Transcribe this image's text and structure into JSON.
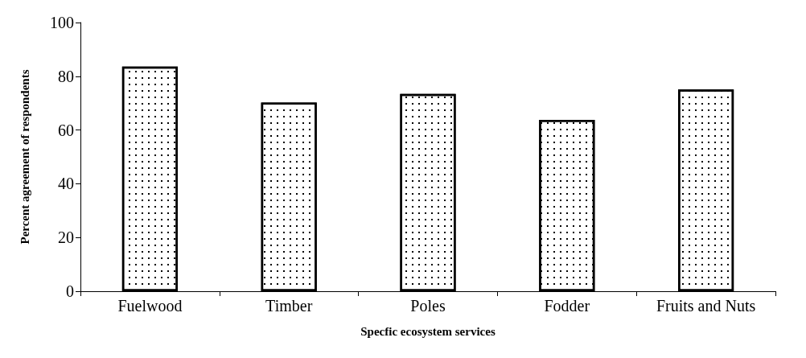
{
  "chart_data": {
    "type": "bar",
    "xlabel": "Specfic ecosystem services",
    "ylabel": "Percent agreement of respondents",
    "categories": [
      "Fuelwood",
      "Timber",
      "Poles",
      "Fodder",
      "Fruits and Nuts"
    ],
    "values": [
      83.6,
      70.2,
      73.4,
      63.8,
      75.1
    ],
    "color": "#ffffff",
    "ylim": [
      0,
      100
    ],
    "yticks": [
      0,
      20,
      40,
      60,
      80,
      100
    ],
    "grid": false
  }
}
